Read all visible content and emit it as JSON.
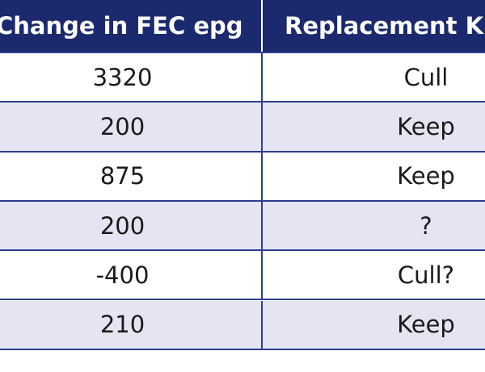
{
  "table": {
    "header": [
      "Change in FEC epg",
      "Replacement K"
    ],
    "rows": [
      [
        3320,
        "Cull"
      ],
      [
        200,
        "Keep"
      ],
      [
        875,
        "Keep"
      ],
      [
        200,
        "?"
      ],
      [
        -400,
        "Cull?"
      ],
      [
        210,
        "Keep"
      ]
    ]
  }
}
